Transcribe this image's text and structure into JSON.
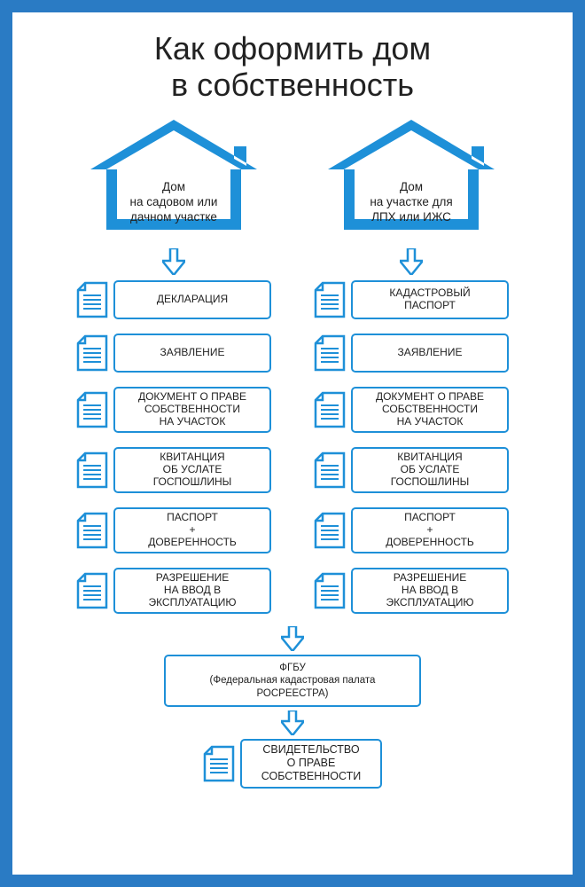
{
  "colors": {
    "frame": "#2a7bc4",
    "accent": "#1e90d8",
    "text": "#222222",
    "bg": "#ffffff"
  },
  "title_line1": "Как оформить дом",
  "title_line2": "в собственность",
  "columns": [
    {
      "house_label": "Дом\nна садовом или\nдачном участке",
      "steps": [
        "ДЕКЛАРАЦИЯ",
        "ЗАЯВЛЕНИЕ",
        "ДОКУМЕНТ О ПРАВЕ\nСОБСТВЕННОСТИ\nНА УЧАСТОК",
        "КВИТАНЦИЯ\nОБ УСЛАТЕ\nГОСПОШЛИНЫ",
        "ПАСПОРТ\n+\nДОВЕРЕННОСТЬ",
        "РАЗРЕШЕНИЕ\nНА ВВОД В\nЭКСПЛУАТАЦИЮ"
      ]
    },
    {
      "house_label": "Дом\nна участке для\nЛПХ или ИЖС",
      "steps": [
        "КАДАСТРОВЫЙ\nПАСПОРТ",
        "ЗАЯВЛЕНИЕ",
        "ДОКУМЕНТ О ПРАВЕ\nСОБСТВЕННОСТИ\nНА УЧАСТОК",
        "КВИТАНЦИЯ\nОБ УСЛАТЕ\nГОСПОШЛИНЫ",
        "ПАСПОРТ\n+\nДОВЕРЕННОСТЬ",
        "РАЗРЕШЕНИЕ\nНА ВВОД В\nЭКСПЛУАТАЦИЮ"
      ]
    }
  ],
  "fgbu_line1": "ФГБУ",
  "fgbu_line2": "(Федеральная кадастровая палата",
  "fgbu_line3": "РОСРЕЕСТРА)",
  "final": "СВИДЕТЕЛЬСТВО\nО ПРАВЕ\nСОБСТВЕННОСТИ"
}
